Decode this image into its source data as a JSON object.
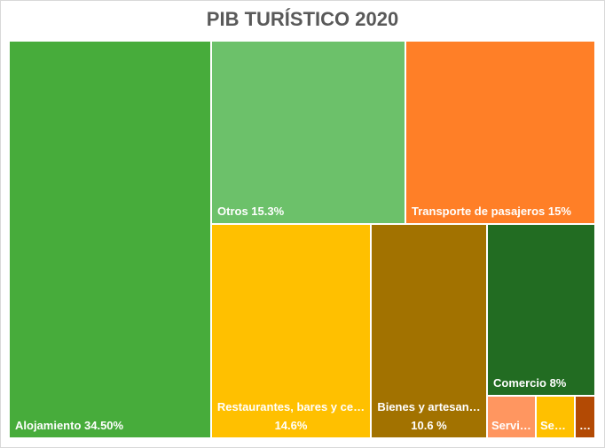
{
  "chart_data": {
    "type": "treemap",
    "title": "PIB TURÍSTICO 2020",
    "items": [
      {
        "name": "Alojamiento",
        "label": "Alojamiento 34.50%",
        "value": 34.5,
        "color": "#47AC3B"
      },
      {
        "name": "Otros",
        "label": "Otros 15.3%",
        "value": 15.3,
        "color": "#6CC16A"
      },
      {
        "name": "Transporte de pasajeros",
        "label": "Transporte de pasajeros 15%",
        "value": 15,
        "color": "#FF7F27"
      },
      {
        "name": "Restaurantes, bares y ce…",
        "label": "Restaurantes, bares y ce…",
        "value_label": "14.6%",
        "value": 14.6,
        "color": "#FFC000"
      },
      {
        "name": "Bienes y artesan…",
        "label": "Bienes y artesan…",
        "value_label": "10.6 %",
        "value": 10.6,
        "color": "#A27200"
      },
      {
        "name": "Comercio",
        "label": "Comercio 8%",
        "value": 8,
        "color": "#226C22"
      },
      {
        "name": "Servi…",
        "label": "Servi…",
        "value": null,
        "color": "#FF9660"
      },
      {
        "name": "Se…",
        "label": "Se…",
        "value": null,
        "color": "#FFC000"
      },
      {
        "name": "…",
        "label": "…",
        "value": null,
        "color": "#B34A04"
      }
    ]
  }
}
